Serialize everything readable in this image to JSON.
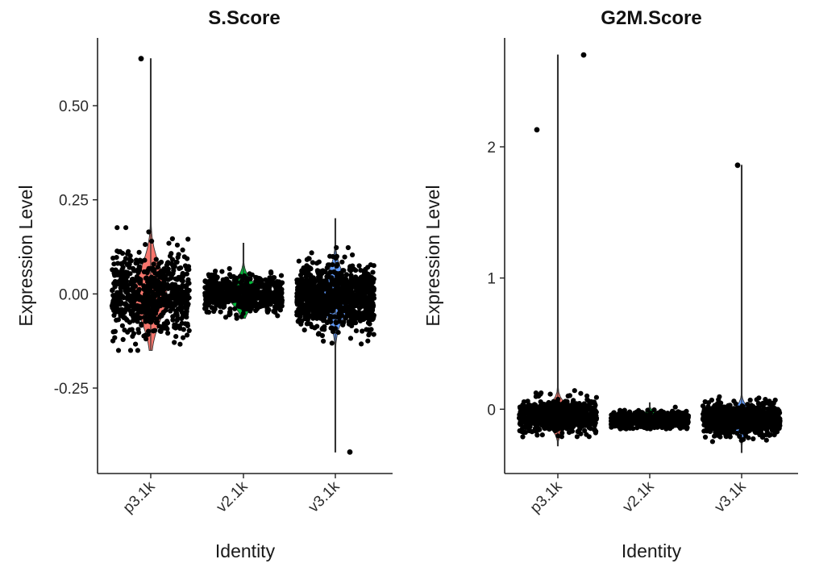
{
  "chart_data": [
    {
      "type": "violin",
      "title": "S.Score",
      "xlabel": "Identity",
      "ylabel": "Expression Level",
      "categories": [
        "p3.1k",
        "v2.1k",
        "v3.1k"
      ],
      "yticks": [
        0.5,
        0.25,
        0.0,
        -0.25
      ],
      "ytick_labels": [
        "0.50",
        "0.25",
        "0.00",
        "-0.25"
      ],
      "ylim": [
        -0.477,
        0.68
      ],
      "grid": false,
      "legend": "none",
      "series": [
        {
          "category": "p3.1k",
          "color": "#F8766D",
          "min": -0.15,
          "max": 0.625,
          "center": 0.0,
          "spread": 0.055,
          "n": 700,
          "outliers": [
            {
              "x_offset": -0.12,
              "y": 0.625
            }
          ]
        },
        {
          "category": "v2.1k",
          "color": "#00BA38",
          "min": -0.065,
          "max": 0.135,
          "center": 0.0,
          "spread": 0.025,
          "n": 600,
          "outliers": []
        },
        {
          "category": "v3.1k",
          "color": "#619CFF",
          "min": -0.42,
          "max": 0.2,
          "center": -0.005,
          "spread": 0.04,
          "n": 900,
          "outliers": [
            {
              "x_offset": 0.18,
              "y": -0.42
            }
          ]
        }
      ]
    },
    {
      "type": "violin",
      "title": "G2M.Score",
      "xlabel": "Identity",
      "ylabel": "Expression Level",
      "categories": [
        "p3.1k",
        "v2.1k",
        "v3.1k"
      ],
      "yticks": [
        2,
        1,
        0
      ],
      "ytick_labels": [
        "2",
        "1",
        "0"
      ],
      "ylim": [
        -0.49,
        2.83
      ],
      "grid": false,
      "legend": "none",
      "series": [
        {
          "category": "p3.1k",
          "color": "#F8766D",
          "min": -0.28,
          "max": 2.7,
          "center": -0.05,
          "spread": 0.06,
          "n": 700,
          "outliers": [
            {
              "x_offset": -0.26,
              "y": 2.13
            },
            {
              "x_offset": 0.32,
              "y": 2.7
            }
          ]
        },
        {
          "category": "v2.1k",
          "color": "#00BA38",
          "min": -0.15,
          "max": 0.05,
          "center": -0.08,
          "spread": 0.03,
          "n": 600,
          "outliers": []
        },
        {
          "category": "v3.1k",
          "color": "#619CFF",
          "min": -0.33,
          "max": 1.86,
          "center": -0.08,
          "spread": 0.055,
          "n": 900,
          "outliers": [
            {
              "x_offset": -0.05,
              "y": 1.86
            }
          ]
        }
      ]
    }
  ]
}
